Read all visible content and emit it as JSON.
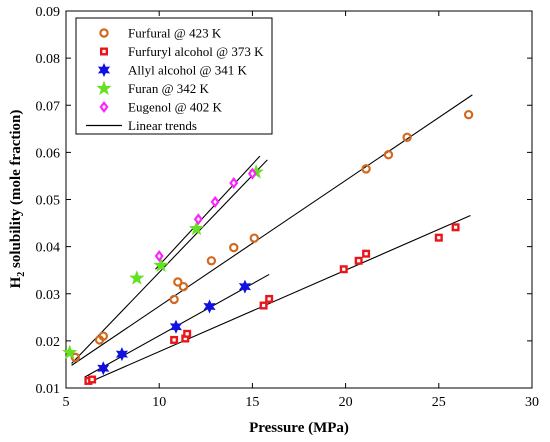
{
  "chart_data": {
    "type": "scatter",
    "xlabel": "Pressure (MPa)",
    "ylabel_main": "H",
    "ylabel_sub": "2",
    "ylabel_rest": " solubility (mole fraction)",
    "xlim": [
      5,
      30
    ],
    "ylim": [
      0.01,
      0.09
    ],
    "xticks": [
      5,
      10,
      15,
      20,
      25,
      30
    ],
    "yticks": [
      0.01,
      0.02,
      0.03,
      0.04,
      0.05,
      0.06,
      0.07,
      0.08,
      0.09
    ],
    "grid": false,
    "legend_position": "top-left",
    "series": [
      {
        "name": "Furfural @ 423 K",
        "marker": "circle",
        "color": "#d2691e",
        "points": [
          [
            5.5,
            0.0165
          ],
          [
            6.8,
            0.0202
          ],
          [
            7.0,
            0.021
          ],
          [
            10.8,
            0.0288
          ],
          [
            11.0,
            0.0325
          ],
          [
            11.3,
            0.0315
          ],
          [
            12.8,
            0.037
          ],
          [
            14.0,
            0.0398
          ],
          [
            15.1,
            0.0418
          ],
          [
            21.1,
            0.0565
          ],
          [
            22.3,
            0.0595
          ],
          [
            23.3,
            0.0632
          ],
          [
            26.6,
            0.068
          ]
        ]
      },
      {
        "name": "Furfuryl alcohol @ 373 K",
        "marker": "square",
        "color": "#e8161b",
        "points": [
          [
            6.2,
            0.0115
          ],
          [
            6.4,
            0.0118
          ],
          [
            10.8,
            0.0202
          ],
          [
            11.4,
            0.0205
          ],
          [
            11.5,
            0.0215
          ],
          [
            15.6,
            0.0275
          ],
          [
            15.9,
            0.0289
          ],
          [
            19.9,
            0.0352
          ],
          [
            20.7,
            0.037
          ],
          [
            21.1,
            0.0385
          ],
          [
            25.0,
            0.0419
          ],
          [
            25.9,
            0.0441
          ]
        ]
      },
      {
        "name": "Allyl alcohol @ 341 K",
        "marker": "hexagram",
        "color": "#1010e0",
        "points": [
          [
            7.0,
            0.0142
          ],
          [
            8.0,
            0.0172
          ],
          [
            10.9,
            0.023
          ],
          [
            12.7,
            0.0273
          ],
          [
            14.6,
            0.0315
          ]
        ]
      },
      {
        "name": "Furan @ 342 K",
        "marker": "pentagram",
        "color": "#66e022",
        "points": [
          [
            5.2,
            0.0175
          ],
          [
            8.8,
            0.0333
          ],
          [
            10.1,
            0.036
          ],
          [
            12.0,
            0.0438
          ],
          [
            15.2,
            0.0558
          ]
        ]
      },
      {
        "name": "Eugenol @ 402 K",
        "marker": "diamond",
        "color": "#ff22ff",
        "points": [
          [
            10.0,
            0.038
          ],
          [
            12.1,
            0.0458
          ],
          [
            13.0,
            0.0495
          ],
          [
            14.0,
            0.0535
          ],
          [
            15.0,
            0.0555
          ]
        ]
      },
      {
        "name": "Linear trends",
        "marker": "line",
        "color": "#000000",
        "points": []
      }
    ],
    "trend_lines": [
      {
        "from": [
          5.3,
          0.0148
        ],
        "to": [
          26.8,
          0.0722
        ]
      },
      {
        "from": [
          6.0,
          0.0108
        ],
        "to": [
          26.7,
          0.0466
        ]
      },
      {
        "from": [
          6.0,
          0.0123
        ],
        "to": [
          15.9,
          0.0341
        ]
      },
      {
        "from": [
          5.3,
          0.0152
        ],
        "to": [
          15.8,
          0.0584
        ]
      },
      {
        "from": [
          9.8,
          0.0352
        ],
        "to": [
          15.4,
          0.0592
        ]
      }
    ]
  }
}
